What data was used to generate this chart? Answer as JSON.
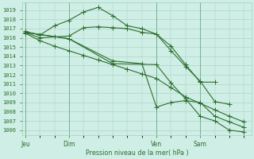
{
  "background_color": "#ceeee6",
  "grid_color": "#aacfbe",
  "line_color": "#2d6e2d",
  "ylabel": "Pression niveau de la mer( hPa )",
  "ylim": [
    1005.5,
    1019.8
  ],
  "yticks": [
    1006,
    1007,
    1008,
    1009,
    1010,
    1011,
    1012,
    1013,
    1014,
    1015,
    1016,
    1017,
    1018,
    1019
  ],
  "xtick_labels": [
    "Jeu",
    "Dim",
    "Ven",
    "Sam"
  ],
  "lines": [
    {
      "x": [
        0,
        1,
        2,
        3,
        4,
        5,
        6,
        7,
        8,
        9,
        10,
        11,
        12,
        13
      ],
      "y": [
        1016.7,
        1016.3,
        1017.3,
        1017.9,
        1018.8,
        1019.3,
        1018.4,
        1017.3,
        1017.0,
        1016.4,
        1015.1,
        1013.1,
        1011.2,
        1011.2
      ]
    },
    {
      "x": [
        0,
        1,
        2,
        3,
        4,
        5,
        6,
        7,
        8,
        9,
        10,
        11,
        12,
        13,
        14
      ],
      "y": [
        1016.6,
        1016.0,
        1016.1,
        1016.2,
        1017.1,
        1017.2,
        1017.1,
        1017.0,
        1016.6,
        1016.4,
        1014.6,
        1012.9,
        1011.3,
        1009.1,
        1008.8
      ]
    },
    {
      "x": [
        0,
        1,
        2,
        3,
        4,
        5,
        6,
        7,
        8,
        9,
        10,
        11,
        12,
        13,
        14,
        15
      ],
      "y": [
        1016.5,
        1015.7,
        1015.1,
        1014.6,
        1014.1,
        1013.6,
        1013.1,
        1012.6,
        1012.1,
        1011.6,
        1010.6,
        1009.6,
        1008.9,
        1008.2,
        1007.5,
        1006.9
      ]
    },
    {
      "x": [
        0,
        3,
        6,
        8,
        9,
        10,
        11,
        12,
        13,
        14,
        15
      ],
      "y": [
        1016.6,
        1015.9,
        1013.5,
        1013.2,
        1008.5,
        1009.0,
        1009.2,
        1009.0,
        1007.5,
        1006.9,
        1006.3
      ]
    },
    {
      "x": [
        0,
        3,
        6,
        9,
        10,
        11,
        12,
        13,
        14,
        15
      ],
      "y": [
        1016.6,
        1015.9,
        1013.2,
        1013.1,
        1011.1,
        1009.4,
        1007.5,
        1007.0,
        1006.0,
        1005.8
      ]
    }
  ],
  "day_positions": [
    0,
    3,
    9,
    12
  ],
  "xlim": [
    -0.2,
    15.5
  ]
}
